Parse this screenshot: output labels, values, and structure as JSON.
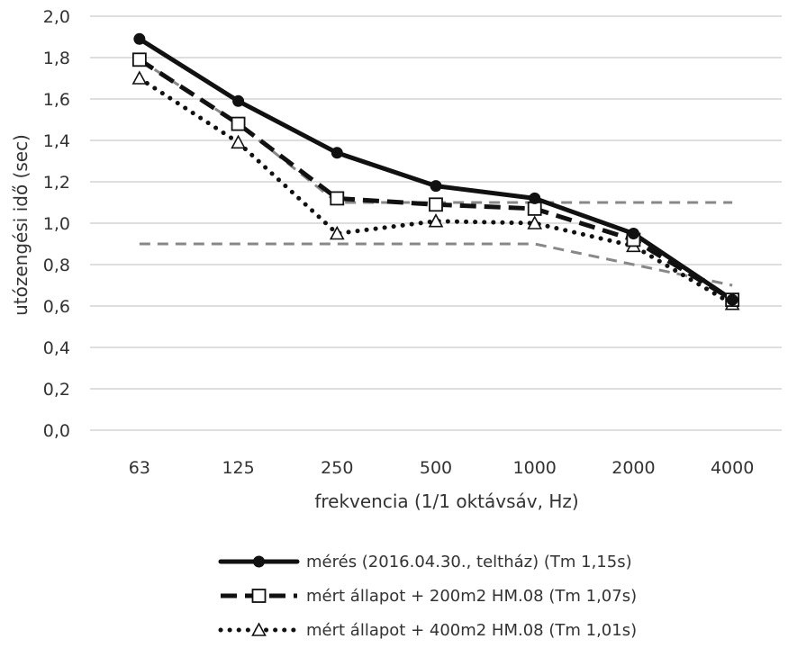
{
  "chart_data": {
    "type": "line",
    "title": "",
    "xlabel": "frekvencia (1/1 oktávsáv, Hz)",
    "ylabel": "utózengési idő (sec)",
    "categories": [
      "63",
      "125",
      "250",
      "500",
      "1000",
      "2000",
      "4000"
    ],
    "ylim": [
      0,
      2.0
    ],
    "ytick_step": 0.2,
    "ytick_labels": [
      "0,0",
      "0,2",
      "0,4",
      "0,6",
      "0,8",
      "1,0",
      "1,2",
      "1,4",
      "1,6",
      "1,8",
      "2,0"
    ],
    "grid": true,
    "legend_placement": "bottom",
    "series": [
      {
        "name": "mérés (2016.04.30., teltház) (Tm 1,15s)",
        "values": [
          1.89,
          1.59,
          1.34,
          1.18,
          1.12,
          0.95,
          0.63
        ],
        "color": "#111111",
        "line": "solid",
        "marker": "circle"
      },
      {
        "name": "mért állapot + 200m2 HM.08 (Tm 1,07s)",
        "values": [
          1.79,
          1.48,
          1.12,
          1.09,
          1.07,
          0.92,
          0.63
        ],
        "color": "#111111",
        "line": "dashed",
        "marker": "square"
      },
      {
        "name": "mért állapot + 400m2 HM.08 (Tm 1,01s)",
        "values": [
          1.7,
          1.39,
          0.95,
          1.01,
          1.0,
          0.89,
          0.61
        ],
        "color": "#111111",
        "line": "dotted",
        "marker": "triangle"
      },
      {
        "values": [
          1.79,
          1.48,
          1.1,
          1.1,
          1.1,
          1.1,
          1.1
        ],
        "color": "#888888",
        "line": "dashed-gray",
        "marker": "none"
      },
      {
        "values": [
          0.9,
          0.9,
          0.9,
          0.9,
          0.9,
          0.8,
          0.7
        ],
        "color": "#888888",
        "line": "dashed-gray",
        "marker": "none"
      }
    ]
  }
}
